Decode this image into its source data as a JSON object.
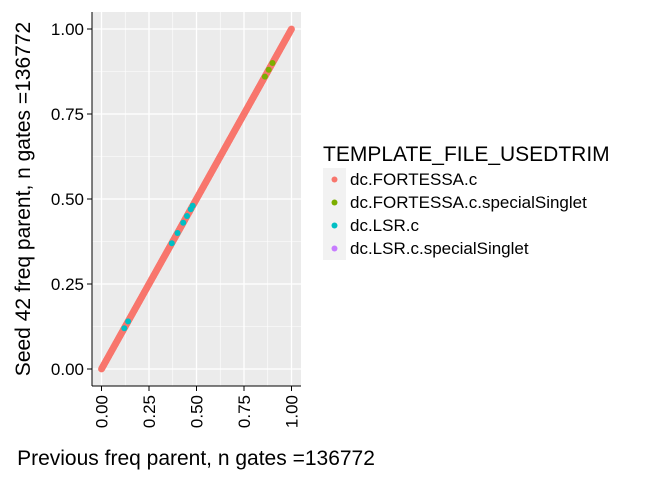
{
  "chart_data": {
    "type": "scatter",
    "xlabel": "Previous freq parent, n gates =136772",
    "ylabel": "Seed 42 freq parent, n gates =136772",
    "xlim": [
      -0.05,
      1.05
    ],
    "ylim": [
      -0.05,
      1.05
    ],
    "x_ticks": [
      "0.00",
      "0.25",
      "0.50",
      "0.75",
      "1.00"
    ],
    "y_ticks": [
      "0.00",
      "0.25",
      "0.50",
      "0.75",
      "1.00"
    ],
    "grid": true,
    "legend": {
      "title": "TEMPLATE_FILE_USEDTRIM",
      "placement": "right"
    },
    "series": [
      {
        "name": "dc.FORTESSA.c",
        "color": "#F8766D",
        "x": [
          0,
          0.05,
          0.1,
          0.15,
          0.2,
          0.25,
          0.3,
          0.35,
          0.4,
          0.45,
          0.5,
          0.55,
          0.6,
          0.65,
          0.7,
          0.75,
          0.8,
          0.85,
          0.9,
          0.95,
          1
        ],
        "y": [
          0,
          0.05,
          0.1,
          0.15,
          0.2,
          0.25,
          0.3,
          0.35,
          0.4,
          0.45,
          0.5,
          0.55,
          0.6,
          0.65,
          0.7,
          0.75,
          0.8,
          0.85,
          0.9,
          0.95,
          1
        ]
      },
      {
        "name": "dc.FORTESSA.c.specialSinglet",
        "color": "#7CAE00",
        "x": [
          0.86,
          0.88,
          0.9
        ],
        "y": [
          0.86,
          0.88,
          0.9
        ]
      },
      {
        "name": "dc.LSR.c",
        "color": "#00BFC4",
        "x": [
          0.12,
          0.14,
          0.37,
          0.4,
          0.43,
          0.45,
          0.47,
          0.48
        ],
        "y": [
          0.12,
          0.14,
          0.37,
          0.4,
          0.43,
          0.45,
          0.47,
          0.48
        ]
      },
      {
        "name": "dc.LSR.c.specialSinglet",
        "color": "#C77CFF",
        "x": [],
        "y": []
      }
    ]
  }
}
